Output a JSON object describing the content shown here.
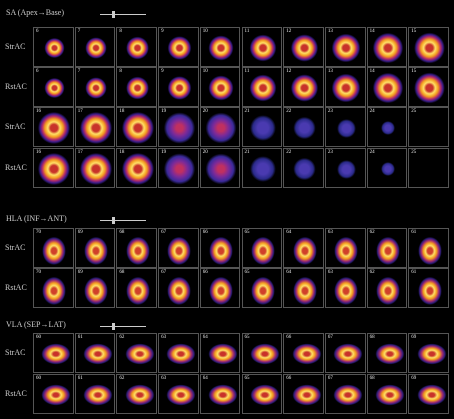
{
  "sections": [
    {
      "title": "SA (Apex→Base)",
      "rows": [
        {
          "label": "StrAC",
          "panels": [
            "6",
            "7",
            "8",
            "9",
            "10",
            "11",
            "12",
            "13",
            "14",
            "15"
          ]
        },
        {
          "label": "RstAC",
          "panels": [
            "6",
            "7",
            "8",
            "9",
            "10",
            "11",
            "12",
            "13",
            "14",
            "15"
          ]
        },
        {
          "label": "StrAC",
          "panels": [
            "16",
            "17",
            "18",
            "19",
            "20",
            "21",
            "22",
            "23",
            "24",
            "25"
          ]
        },
        {
          "label": "RstAC",
          "panels": [
            "16",
            "17",
            "18",
            "19",
            "20",
            "21",
            "22",
            "23",
            "24",
            "25"
          ]
        }
      ]
    },
    {
      "title": "HLA (INF→ANT)",
      "rows": [
        {
          "label": "StrAC",
          "panels": [
            "70",
            "69",
            "68",
            "67",
            "66",
            "65",
            "64",
            "63",
            "62",
            "61"
          ]
        },
        {
          "label": "RstAC",
          "panels": [
            "70",
            "69",
            "68",
            "67",
            "66",
            "65",
            "64",
            "63",
            "62",
            "61"
          ]
        }
      ]
    },
    {
      "title": "VLA (SEP→LAT)",
      "rows": [
        {
          "label": "StrAC",
          "panels": [
            "60",
            "61",
            "62",
            "63",
            "64",
            "65",
            "66",
            "67",
            "68",
            "69"
          ]
        },
        {
          "label": "RstAC",
          "panels": [
            "60",
            "61",
            "62",
            "63",
            "64",
            "65",
            "66",
            "67",
            "68",
            "69"
          ]
        }
      ]
    }
  ]
}
